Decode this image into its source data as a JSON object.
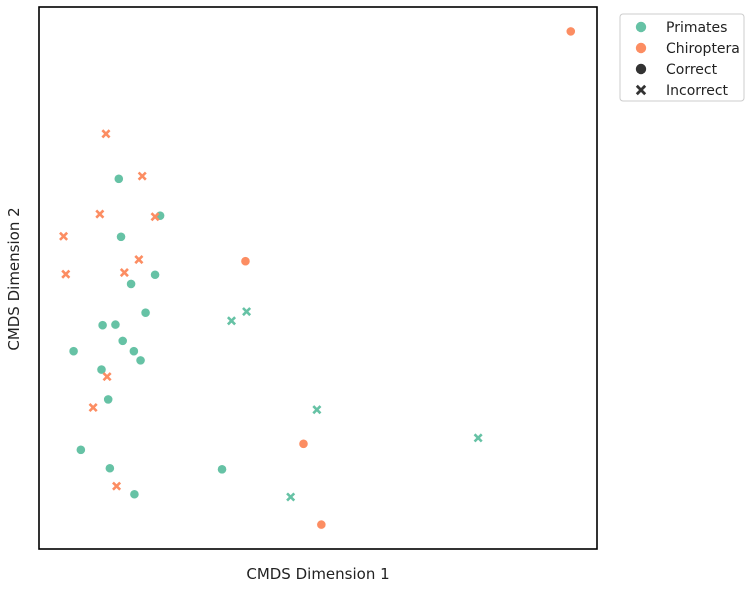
{
  "chart_data": {
    "type": "scatter",
    "title": "",
    "xlabel": "CMDS Dimension 1",
    "ylabel": "CMDS Dimension 2",
    "xlim": [
      0,
      100
    ],
    "ylim": [
      0,
      100
    ],
    "grid": false,
    "legend_placement": "outside-top-right",
    "ticks": "none",
    "hue_legend": [
      {
        "label": "Primates",
        "color": "#66c2a5"
      },
      {
        "label": "Chiroptera",
        "color": "#fc8d62"
      }
    ],
    "style_legend": [
      {
        "label": "Correct",
        "marker": "circle"
      },
      {
        "label": "Incorrect",
        "marker": "x"
      }
    ],
    "points": [
      {
        "x": 14.3,
        "y": 68.3,
        "group": "Primates",
        "outcome": "Correct"
      },
      {
        "x": 21.7,
        "y": 61.5,
        "group": "Primates",
        "outcome": "Correct"
      },
      {
        "x": 14.7,
        "y": 57.6,
        "group": "Primates",
        "outcome": "Correct"
      },
      {
        "x": 20.8,
        "y": 50.6,
        "group": "Primates",
        "outcome": "Correct"
      },
      {
        "x": 16.5,
        "y": 48.9,
        "group": "Primates",
        "outcome": "Correct"
      },
      {
        "x": 19.1,
        "y": 43.6,
        "group": "Primates",
        "outcome": "Correct"
      },
      {
        "x": 11.4,
        "y": 41.3,
        "group": "Primates",
        "outcome": "Correct"
      },
      {
        "x": 13.7,
        "y": 41.4,
        "group": "Primates",
        "outcome": "Correct"
      },
      {
        "x": 15.0,
        "y": 38.4,
        "group": "Primates",
        "outcome": "Correct"
      },
      {
        "x": 17.0,
        "y": 36.5,
        "group": "Primates",
        "outcome": "Correct"
      },
      {
        "x": 18.2,
        "y": 34.8,
        "group": "Primates",
        "outcome": "Correct"
      },
      {
        "x": 6.2,
        "y": 36.5,
        "group": "Primates",
        "outcome": "Correct"
      },
      {
        "x": 11.2,
        "y": 33.1,
        "group": "Primates",
        "outcome": "Correct"
      },
      {
        "x": 12.4,
        "y": 27.6,
        "group": "Primates",
        "outcome": "Correct"
      },
      {
        "x": 7.5,
        "y": 18.3,
        "group": "Primates",
        "outcome": "Correct"
      },
      {
        "x": 12.7,
        "y": 14.9,
        "group": "Primates",
        "outcome": "Correct"
      },
      {
        "x": 17.1,
        "y": 10.1,
        "group": "Primates",
        "outcome": "Correct"
      },
      {
        "x": 32.8,
        "y": 14.7,
        "group": "Primates",
        "outcome": "Correct"
      },
      {
        "x": 34.5,
        "y": 42.1,
        "group": "Primates",
        "outcome": "Incorrect"
      },
      {
        "x": 37.2,
        "y": 43.8,
        "group": "Primates",
        "outcome": "Incorrect"
      },
      {
        "x": 49.8,
        "y": 25.7,
        "group": "Primates",
        "outcome": "Incorrect"
      },
      {
        "x": 78.7,
        "y": 20.5,
        "group": "Primates",
        "outcome": "Incorrect"
      },
      {
        "x": 45.1,
        "y": 9.6,
        "group": "Primates",
        "outcome": "Incorrect"
      },
      {
        "x": 95.3,
        "y": 95.5,
        "group": "Chiroptera",
        "outcome": "Correct"
      },
      {
        "x": 37.0,
        "y": 53.1,
        "group": "Chiroptera",
        "outcome": "Correct"
      },
      {
        "x": 47.4,
        "y": 19.4,
        "group": "Chiroptera",
        "outcome": "Correct"
      },
      {
        "x": 50.6,
        "y": 4.5,
        "group": "Chiroptera",
        "outcome": "Correct"
      },
      {
        "x": 12.0,
        "y": 76.6,
        "group": "Chiroptera",
        "outcome": "Incorrect"
      },
      {
        "x": 18.5,
        "y": 68.8,
        "group": "Chiroptera",
        "outcome": "Incorrect"
      },
      {
        "x": 10.9,
        "y": 61.8,
        "group": "Chiroptera",
        "outcome": "Incorrect"
      },
      {
        "x": 20.8,
        "y": 61.3,
        "group": "Chiroptera",
        "outcome": "Incorrect"
      },
      {
        "x": 4.4,
        "y": 57.7,
        "group": "Chiroptera",
        "outcome": "Incorrect"
      },
      {
        "x": 17.9,
        "y": 53.4,
        "group": "Chiroptera",
        "outcome": "Incorrect"
      },
      {
        "x": 15.3,
        "y": 51.0,
        "group": "Chiroptera",
        "outcome": "Incorrect"
      },
      {
        "x": 4.8,
        "y": 50.7,
        "group": "Chiroptera",
        "outcome": "Incorrect"
      },
      {
        "x": 12.2,
        "y": 31.8,
        "group": "Chiroptera",
        "outcome": "Incorrect"
      },
      {
        "x": 9.7,
        "y": 26.1,
        "group": "Chiroptera",
        "outcome": "Incorrect"
      },
      {
        "x": 13.9,
        "y": 11.6,
        "group": "Chiroptera",
        "outcome": "Incorrect"
      }
    ]
  }
}
